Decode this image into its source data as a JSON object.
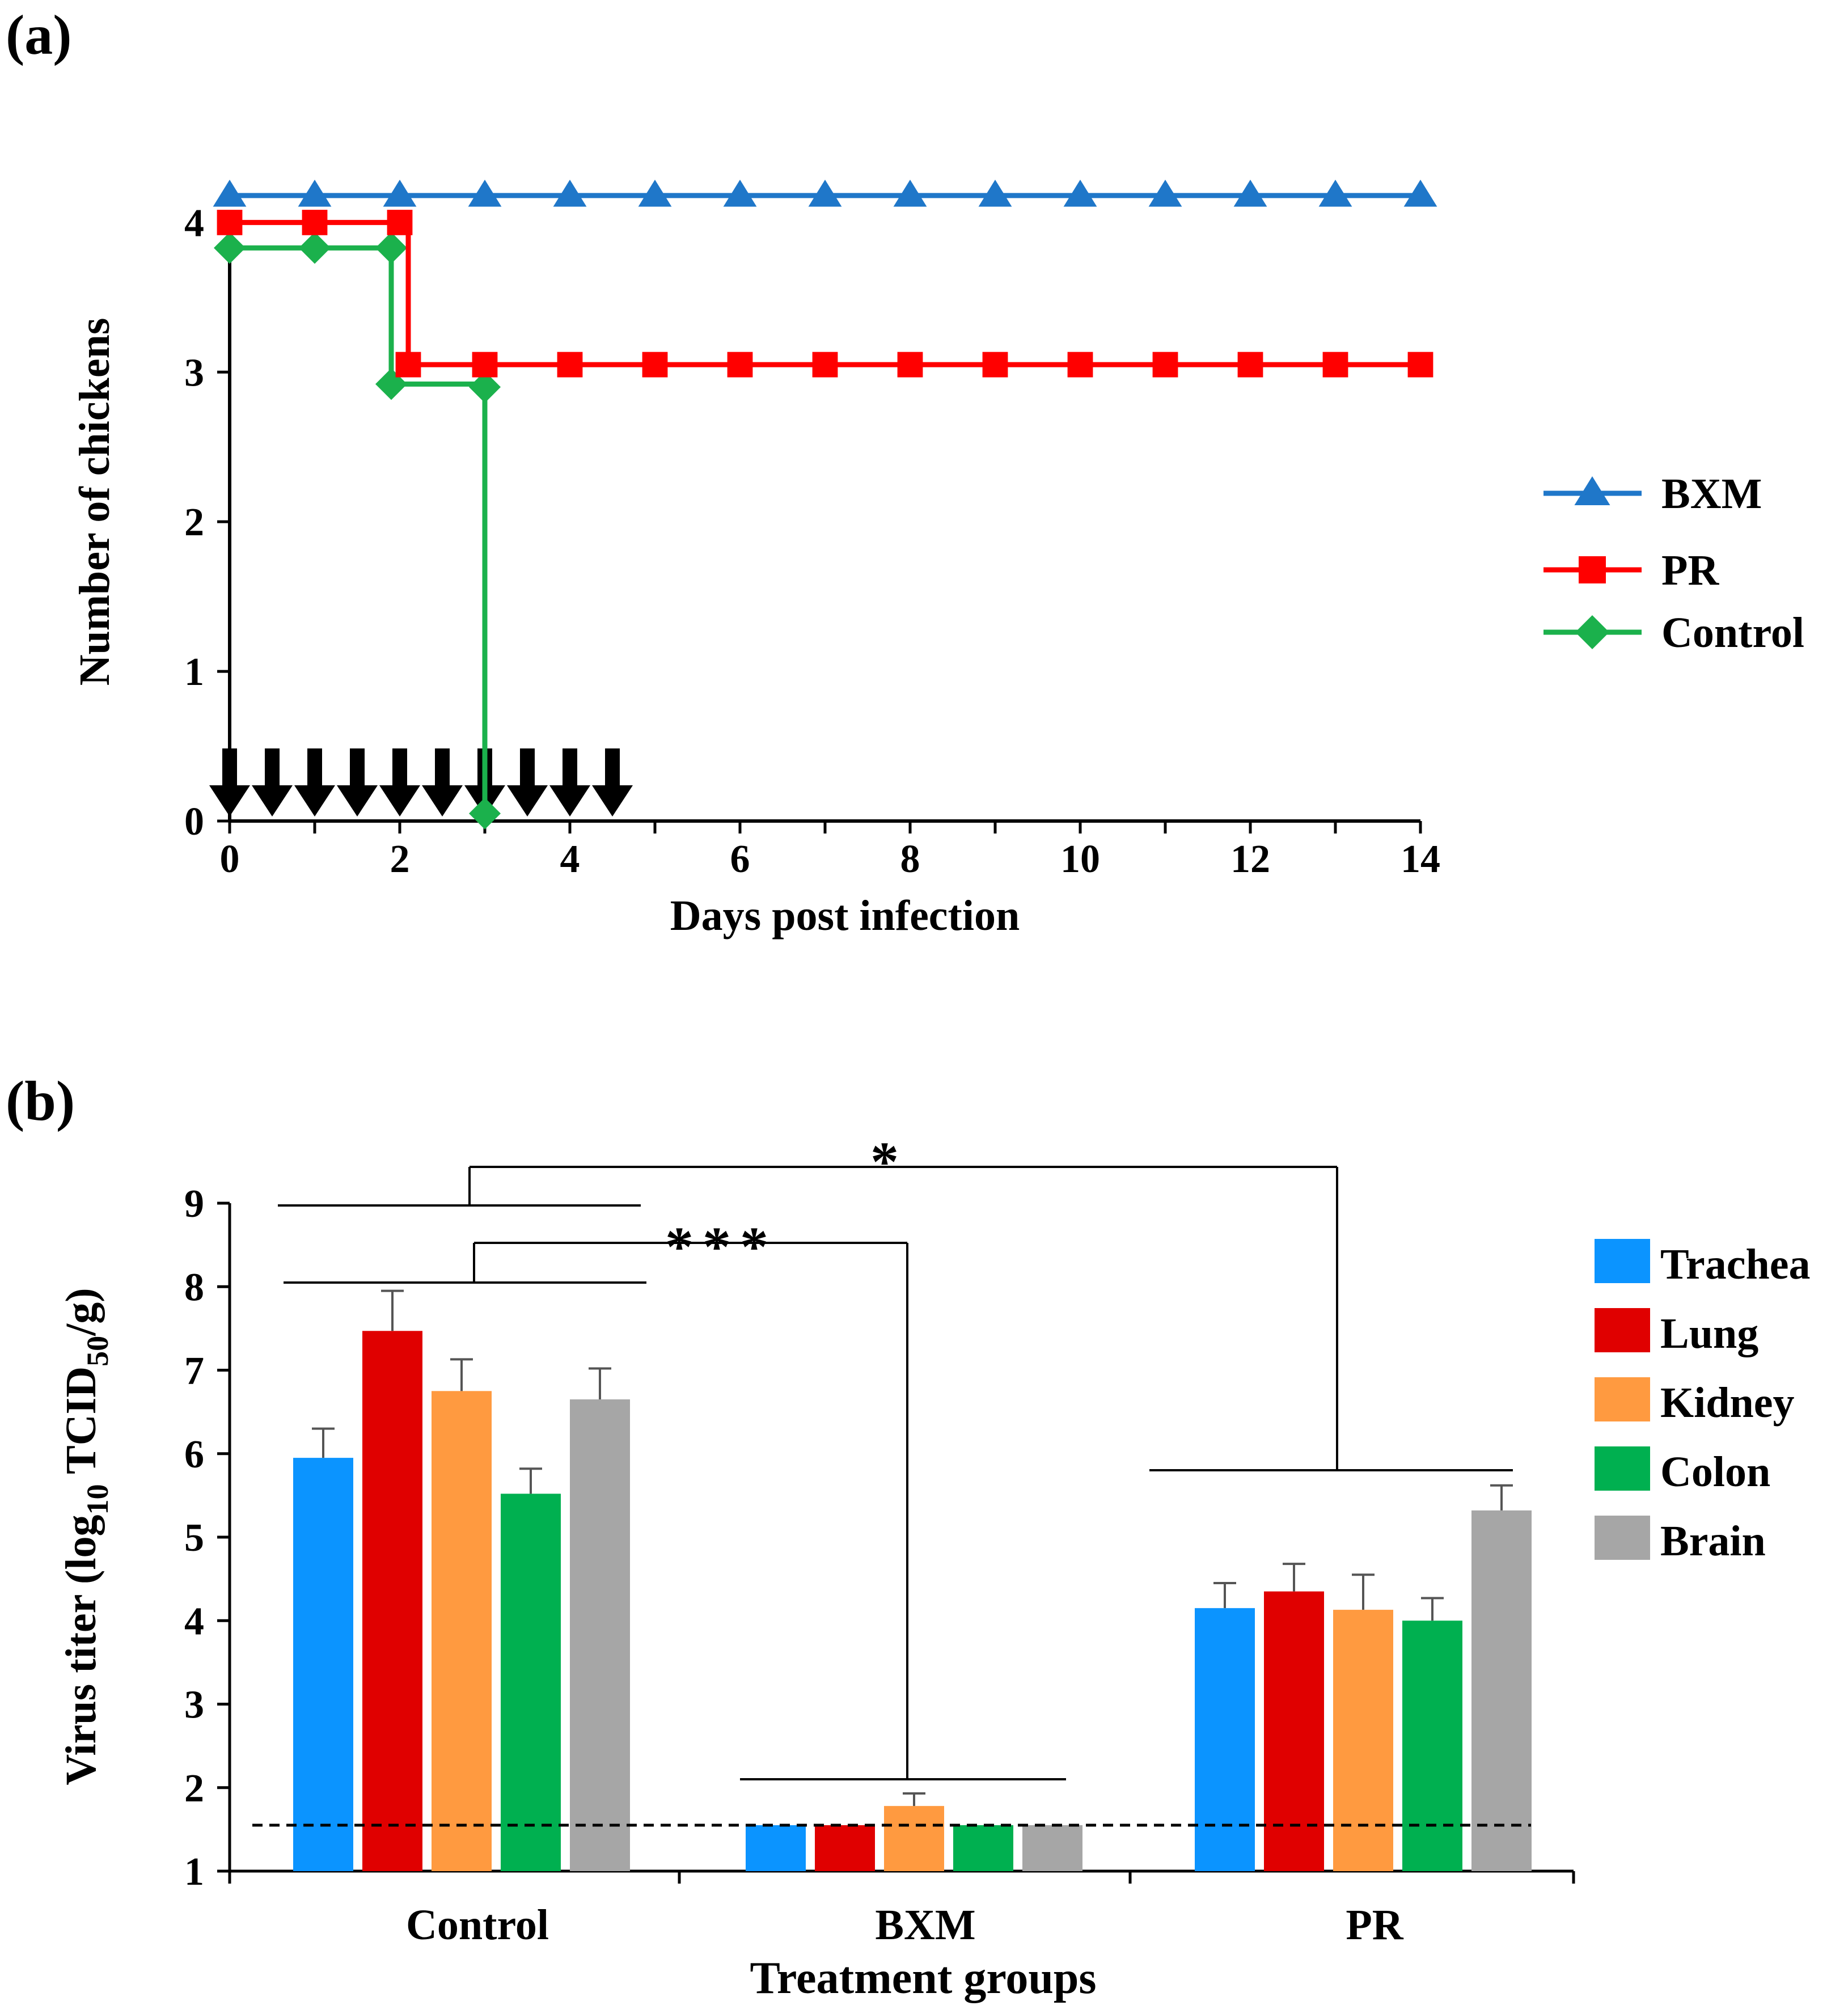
{
  "panels": {
    "a": {
      "label": "(a)"
    },
    "b": {
      "label": "(b)"
    }
  },
  "chart_data": [
    {
      "type": "line",
      "panel": "(a)",
      "title": "",
      "xlabel": "Days post infection",
      "ylabel": "Number of chickens",
      "xlim": [
        0,
        14
      ],
      "ylim": [
        0,
        4.35
      ],
      "xticks": [
        "0",
        "2",
        "4",
        "6",
        "8",
        "10",
        "12",
        "14"
      ],
      "yticks": [
        "0",
        "1",
        "2",
        "3",
        "4"
      ],
      "legend_position": "right",
      "step_plot": true,
      "series": [
        {
          "name": "BXM",
          "color": "#1f77c9",
          "marker": "triangle",
          "x": [
            0,
            1,
            2,
            3,
            4,
            5,
            6,
            7,
            8,
            9,
            10,
            11,
            12,
            13,
            14
          ],
          "y": [
            4.18,
            4.18,
            4.18,
            4.18,
            4.18,
            4.18,
            4.18,
            4.18,
            4.18,
            4.18,
            4.18,
            4.18,
            4.18,
            4.18,
            4.18
          ]
        },
        {
          "name": "PR",
          "color": "#ff0000",
          "marker": "square",
          "x": [
            0,
            1,
            2,
            2.1,
            3,
            4,
            5,
            6,
            7,
            8,
            9,
            10,
            11,
            12,
            13,
            14
          ],
          "y": [
            4,
            4,
            4,
            3.05,
            3.05,
            3.05,
            3.05,
            3.05,
            3.05,
            3.05,
            3.05,
            3.05,
            3.05,
            3.05,
            3.05,
            3.05
          ]
        },
        {
          "name": "Control",
          "color": "#1bb14c",
          "marker": "diamond",
          "x": [
            0,
            1,
            1.9,
            1.9,
            3,
            3
          ],
          "y": [
            3.83,
            3.83,
            3.83,
            2.92,
            2.9,
            0.05
          ]
        }
      ],
      "arrows_at_days": [
        0,
        0.5,
        1,
        1.5,
        2,
        2.5,
        3,
        3.5,
        4,
        4.5
      ],
      "arrow_glyph": "⬇"
    },
    {
      "type": "bar",
      "panel": "(b)",
      "title": "",
      "xlabel": "Treatment groups",
      "ylabel_prefix": "Virus titer (log",
      "ylabel_sub1": "10",
      "ylabel_mid": " TCID",
      "ylabel_sub2": "50",
      "ylabel_suffix": "/g)",
      "ylim": [
        1,
        9
      ],
      "yticks": [
        "1",
        "2",
        "3",
        "4",
        "5",
        "6",
        "7",
        "8",
        "9"
      ],
      "categories": [
        "Control",
        "BXM",
        "PR"
      ],
      "legend_position": "right",
      "detection_limit": 1.55,
      "series": [
        {
          "name": "Trachea",
          "color": "#0b94ff",
          "values": [
            5.95,
            1.55,
            4.15
          ],
          "errors": [
            0.35,
            0,
            0.3
          ]
        },
        {
          "name": "Lung",
          "color": "#e00000",
          "values": [
            7.47,
            1.55,
            4.35
          ],
          "errors": [
            0.48,
            0,
            0.33
          ]
        },
        {
          "name": "Kidney",
          "color": "#ff9a40",
          "values": [
            6.75,
            1.78,
            4.13
          ],
          "errors": [
            0.38,
            0.15,
            0.42
          ]
        },
        {
          "name": "Colon",
          "color": "#00b050",
          "values": [
            5.52,
            1.55,
            4.0
          ],
          "errors": [
            0.3,
            0,
            0.27
          ]
        },
        {
          "name": "Brain",
          "color": "#a6a6a6",
          "values": [
            6.65,
            1.55,
            5.32
          ],
          "errors": [
            0.37,
            0,
            0.3
          ]
        }
      ],
      "annotations": [
        {
          "text": "*",
          "between": [
            "Control",
            "PR"
          ]
        },
        {
          "text": "***",
          "between": [
            "Control",
            "BXM"
          ]
        }
      ]
    }
  ]
}
